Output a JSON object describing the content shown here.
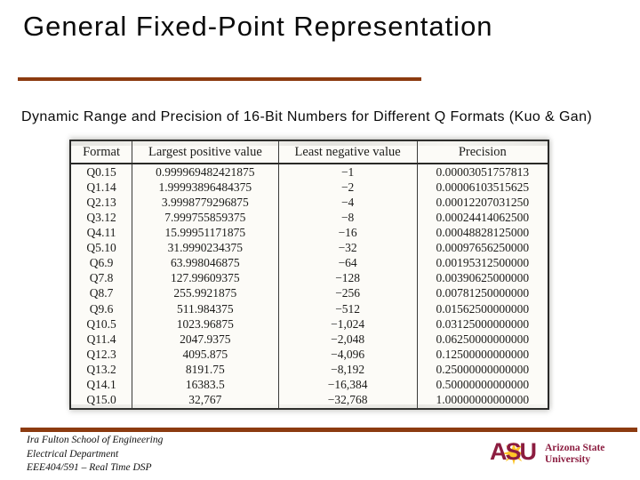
{
  "title": "General Fixed-Point Representation",
  "subtitle": "Dynamic Range and Precision of 16-Bit Numbers for Different Q Formats (Kuo & Gan)",
  "accent_color": "#8c3b10",
  "table": {
    "columns": [
      "Format",
      "Largest positive value",
      "Least negative value",
      "Precision"
    ],
    "rows": [
      [
        "Q0.15",
        "0.999969482421875",
        "−1",
        "0.00003051757813"
      ],
      [
        "Q1.14",
        "1.99993896484375",
        "−2",
        "0.00006103515625"
      ],
      [
        "Q2.13",
        "3.9998779296875",
        "−4",
        "0.00012207031250"
      ],
      [
        "Q3.12",
        "7.999755859375",
        "−8",
        "0.00024414062500"
      ],
      [
        "Q4.11",
        "15.99951171875",
        "−16",
        "0.00048828125000"
      ],
      [
        "Q5.10",
        "31.9990234375",
        "−32",
        "0.00097656250000"
      ],
      [
        "Q6.9",
        "63.998046875",
        "−64",
        "0.00195312500000"
      ],
      [
        "Q7.8",
        "127.99609375",
        "−128",
        "0.00390625000000"
      ],
      [
        "Q8.7",
        "255.9921875",
        "−256",
        "0.00781250000000"
      ],
      [
        "Q9.6",
        "511.984375",
        "−512",
        "0.01562500000000"
      ],
      [
        "Q10.5",
        "1023.96875",
        "−1,024",
        "0.03125000000000"
      ],
      [
        "Q11.4",
        "2047.9375",
        "−2,048",
        "0.06250000000000"
      ],
      [
        "Q12.3",
        "4095.875",
        "−4,096",
        "0.12500000000000"
      ],
      [
        "Q13.2",
        "8191.75",
        "−8,192",
        "0.25000000000000"
      ],
      [
        "Q14.1",
        "16383.5",
        "−16,384",
        "0.50000000000000"
      ],
      [
        "Q15.0",
        "32,767",
        "−32,768",
        "1.00000000000000"
      ]
    ]
  },
  "footer": {
    "lines": [
      "Ira Fulton School of Engineering",
      "Electrical Department",
      "EEE404/591 – Real Time DSP"
    ]
  },
  "logo": {
    "acronym": "ASU",
    "name_line1": "Arizona State",
    "name_line2": "University",
    "maroon": "#8C1D40",
    "gold": "#FFC627"
  }
}
